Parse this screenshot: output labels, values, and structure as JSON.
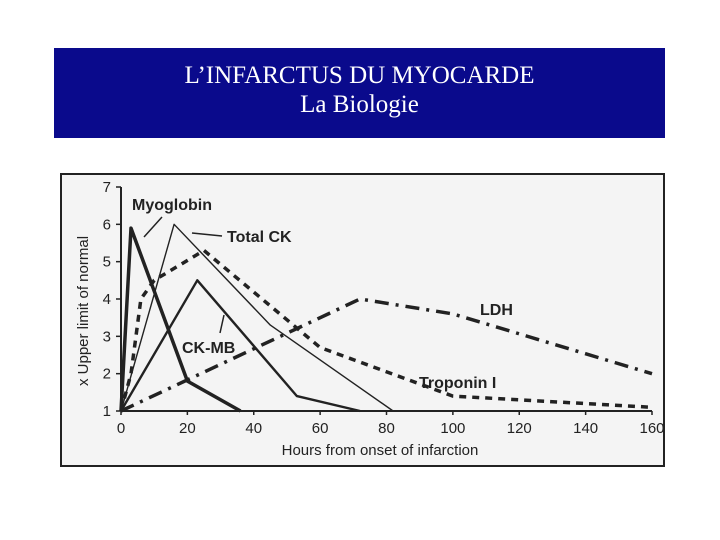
{
  "header": {
    "title": "L’INFARCTUS DU MYOCARDE",
    "subtitle": "La Biologie"
  },
  "colors": {
    "banner": "#0a0a8c",
    "ink": "#222222"
  },
  "chart_data": {
    "type": "line",
    "xlabel": "Hours from onset of infarction",
    "ylabel": "x Upper limit of normal",
    "xlim": [
      0,
      160
    ],
    "ylim": [
      1,
      7
    ],
    "xticks": [
      "0",
      "20",
      "40",
      "60",
      "80",
      "100",
      "120",
      "140",
      "160"
    ],
    "yticks": [
      "1",
      "2",
      "3",
      "4",
      "5",
      "6",
      "7"
    ],
    "grid": false,
    "legend": "labels on lines",
    "series": [
      {
        "name": "Myoglobin",
        "style": "solid-thick",
        "x": [
          0,
          3,
          20,
          36
        ],
        "y": [
          1,
          5.9,
          1.8,
          1
        ]
      },
      {
        "name": "Total CK",
        "style": "solid-thin",
        "x": [
          0,
          16,
          45,
          82
        ],
        "y": [
          1,
          6,
          3.3,
          1
        ]
      },
      {
        "name": "CK-MB",
        "style": "solid-medium",
        "x": [
          0,
          23,
          53,
          72
        ],
        "y": [
          1,
          4.5,
          1.4,
          1
        ]
      },
      {
        "name": "LDH",
        "style": "dash-dot",
        "x": [
          0,
          72,
          100,
          160
        ],
        "y": [
          1,
          4,
          3.6,
          2
        ]
      },
      {
        "name": "Troponin I",
        "style": "dashed",
        "x": [
          0,
          3,
          6,
          10,
          25,
          60,
          100,
          160
        ],
        "y": [
          1,
          2,
          4,
          4.5,
          5.3,
          2.7,
          1.4,
          1.1
        ]
      }
    ]
  }
}
